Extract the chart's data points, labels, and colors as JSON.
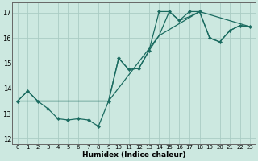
{
  "xlabel": "Humidex (Indice chaleur)",
  "bg_color": "#cce8e0",
  "grid_color": "#aaccc4",
  "line_color": "#1a6b60",
  "xlim": [
    -0.5,
    23.5
  ],
  "ylim": [
    11.8,
    17.4
  ],
  "yticks": [
    12,
    13,
    14,
    15,
    16,
    17
  ],
  "xticks": [
    0,
    1,
    2,
    3,
    4,
    5,
    6,
    7,
    8,
    9,
    10,
    11,
    12,
    13,
    14,
    15,
    16,
    17,
    18,
    19,
    20,
    21,
    22,
    23
  ],
  "line1_x": [
    0,
    1,
    2,
    3,
    4,
    5,
    6,
    7,
    8,
    9,
    10,
    11,
    12,
    13,
    14,
    15,
    16,
    17,
    18,
    19,
    20,
    21,
    22,
    23
  ],
  "line1_y": [
    13.5,
    13.9,
    13.5,
    13.2,
    12.8,
    12.75,
    12.8,
    12.75,
    12.5,
    13.5,
    15.2,
    14.75,
    14.8,
    15.5,
    17.05,
    17.05,
    16.7,
    17.05,
    17.05,
    16.0,
    15.85,
    16.3,
    16.5,
    16.45
  ],
  "line2_x": [
    0,
    1,
    2,
    3,
    9,
    10,
    11,
    12,
    13,
    14,
    15,
    16,
    17,
    18,
    19,
    20,
    21,
    22,
    23
  ],
  "line2_y": [
    13.5,
    13.9,
    13.5,
    13.5,
    13.5,
    15.2,
    14.75,
    14.8,
    15.5,
    16.1,
    17.05,
    16.7,
    16.85,
    17.05,
    16.0,
    15.85,
    16.3,
    16.5,
    16.45
  ],
  "line3_x": [
    0,
    3,
    9,
    14,
    18,
    23
  ],
  "line3_y": [
    13.5,
    13.5,
    13.5,
    16.1,
    17.05,
    16.45
  ]
}
